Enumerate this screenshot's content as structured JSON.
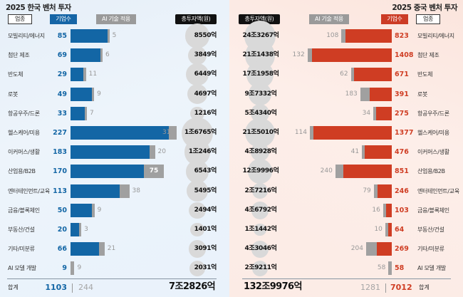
{
  "chart_data": [
    {
      "type": "bar",
      "title": "2025 한국 벤처 투자",
      "headers": {
        "category": "업종",
        "companies": "기업수",
        "ai": "AI 기술 적용",
        "investment": "총투자액(원)"
      },
      "categories": [
        "모빌리티/에너지",
        "첨단 제조",
        "반도체",
        "로봇",
        "항공우주/드론",
        "헬스케어/미용",
        "이커머스/생활",
        "산업용/B2B",
        "엔터테인먼트/교육",
        "금융/블록체인",
        "부동산/건설",
        "기타/미분류",
        "AI 모델 개발"
      ],
      "series": [
        {
          "name": "기업수",
          "values": [
            85,
            69,
            29,
            49,
            33,
            227,
            183,
            170,
            113,
            50,
            20,
            66,
            9
          ]
        },
        {
          "name": "AI 기술 적용",
          "values": [
            5,
            6,
            11,
            9,
            7,
            31,
            20,
            75,
            38,
            9,
            3,
            21,
            9
          ]
        }
      ],
      "investment_labels": [
        "8550억",
        "3849억",
        "6449억",
        "4697억",
        "1216억",
        "1조6765억",
        "1조246억",
        "6543억",
        "5495억",
        "2494억",
        "1401억",
        "3091억",
        "2031억"
      ],
      "investment_values_eok": [
        8550,
        3849,
        6449,
        4697,
        1216,
        16765,
        10246,
        6543,
        5495,
        2494,
        1401,
        3091,
        2031
      ],
      "total": {
        "label": "합계",
        "companies": "1103",
        "ai": "244",
        "investment": "7조2826억"
      },
      "colors": {
        "companies": "#1366a5",
        "ai": "#a0a0a0"
      }
    },
    {
      "type": "bar",
      "title": "2025 중국 벤처 투자",
      "headers": {
        "category": "업종",
        "companies": "기업수",
        "ai": "AI 기술 적용",
        "investment": "총투자액(원)"
      },
      "categories": [
        "모빌리티/에너지",
        "첨단 제조",
        "반도체",
        "로봇",
        "항공우주/드론",
        "헬스케어/미용",
        "이커머스/생활",
        "산업용/B2B",
        "엔터테인먼트/교육",
        "금융/블록체인",
        "부동산/건설",
        "기타/미분류",
        "AI 모델 개발"
      ],
      "series": [
        {
          "name": "기업수",
          "values": [
            823,
            1408,
            671,
            391,
            275,
            1377,
            476,
            851,
            246,
            103,
            64,
            269,
            58
          ]
        },
        {
          "name": "AI 기술 적용",
          "values": [
            108,
            132,
            62,
            183,
            34,
            114,
            41,
            240,
            79,
            16,
            10,
            204,
            58
          ]
        }
      ],
      "investment_labels": [
        "24조3267억",
        "21조1438억",
        "17조1958억",
        "9조7332억",
        "5조4340억",
        "21조5010억",
        "4조8928억",
        "12조9996억",
        "2조7216억",
        "4조6792억",
        "1조1442억",
        "4조3046억",
        "2조9211억"
      ],
      "investment_values_eok": [
        243267,
        211438,
        171958,
        97332,
        54340,
        215010,
        48928,
        129996,
        27216,
        46792,
        11442,
        43046,
        29211
      ],
      "total": {
        "label": "합계",
        "companies": "7012",
        "ai": "1281",
        "investment": "132조9976억"
      },
      "colors": {
        "companies": "#cf3d23",
        "ai": "#a0a0a0"
      }
    }
  ]
}
